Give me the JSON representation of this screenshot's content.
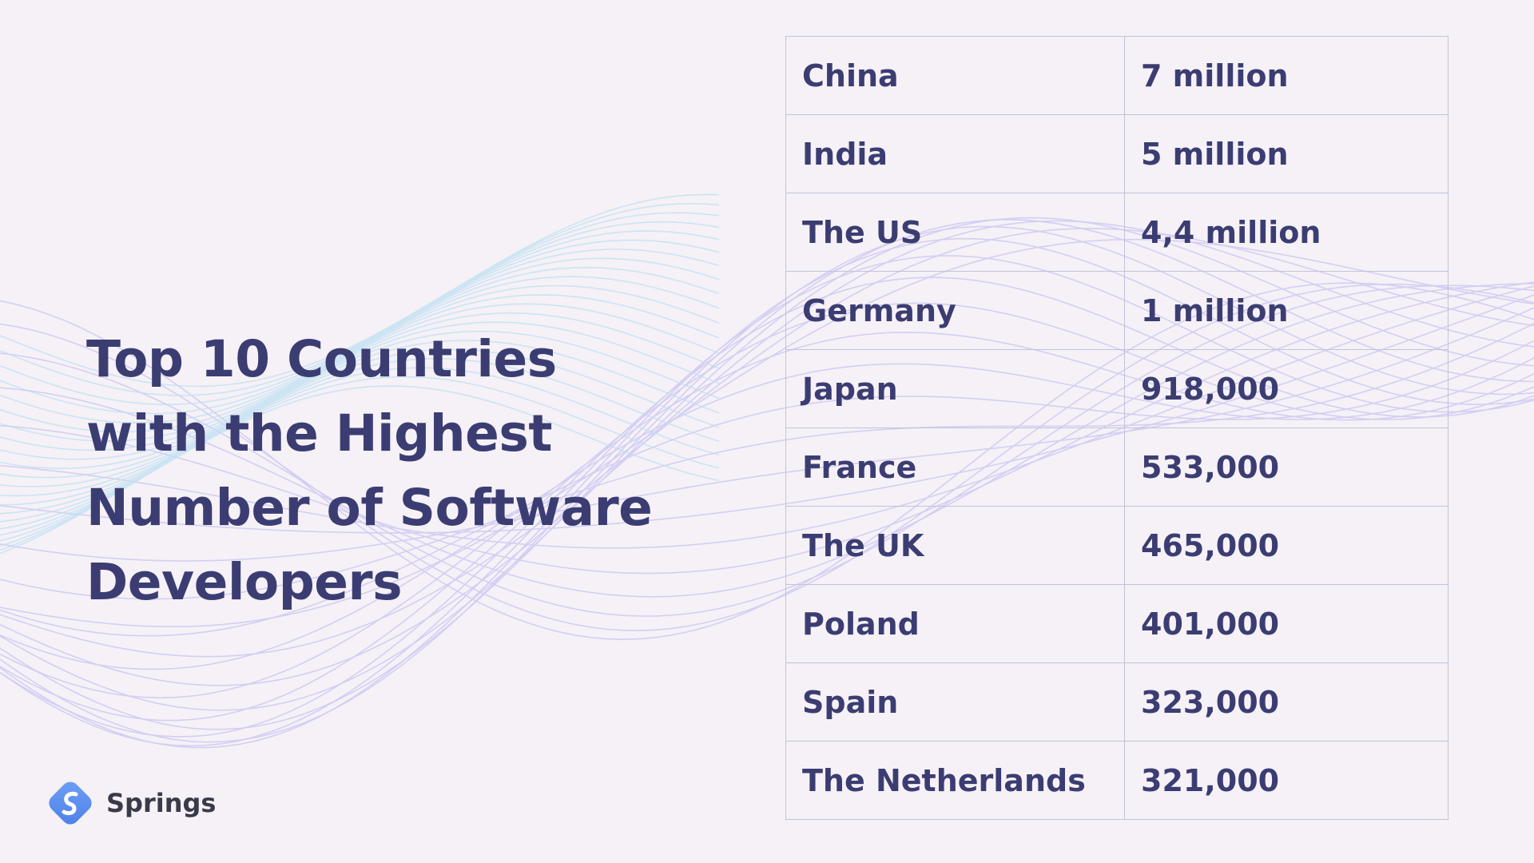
{
  "title": "Top 10 Countries with the Highest Number of Software Developers",
  "brand": {
    "name": "Springs",
    "logo_icon": "springs-s-logo-icon",
    "logo_color": "#5b8def"
  },
  "colors": {
    "background": "#f5f1f6",
    "text": "#3b3d72",
    "table_border": "#c3c2d9",
    "wave_purple": "#c9c3f2",
    "wave_blue": "#bfe0f2"
  },
  "table": {
    "rows": [
      {
        "country": "China",
        "count": "7 million"
      },
      {
        "country": "India",
        "count": "5 million"
      },
      {
        "country": "The US",
        "count": "4,4 million"
      },
      {
        "country": "Germany",
        "count": "1 million"
      },
      {
        "country": "Japan",
        "count": "918,000"
      },
      {
        "country": "France",
        "count": "533,000"
      },
      {
        "country": "The UK",
        "count": "465,000"
      },
      {
        "country": "Poland",
        "count": "401,000"
      },
      {
        "country": "Spain",
        "count": "323,000"
      },
      {
        "country": "The Netherlands",
        "count": "321,000"
      }
    ]
  }
}
